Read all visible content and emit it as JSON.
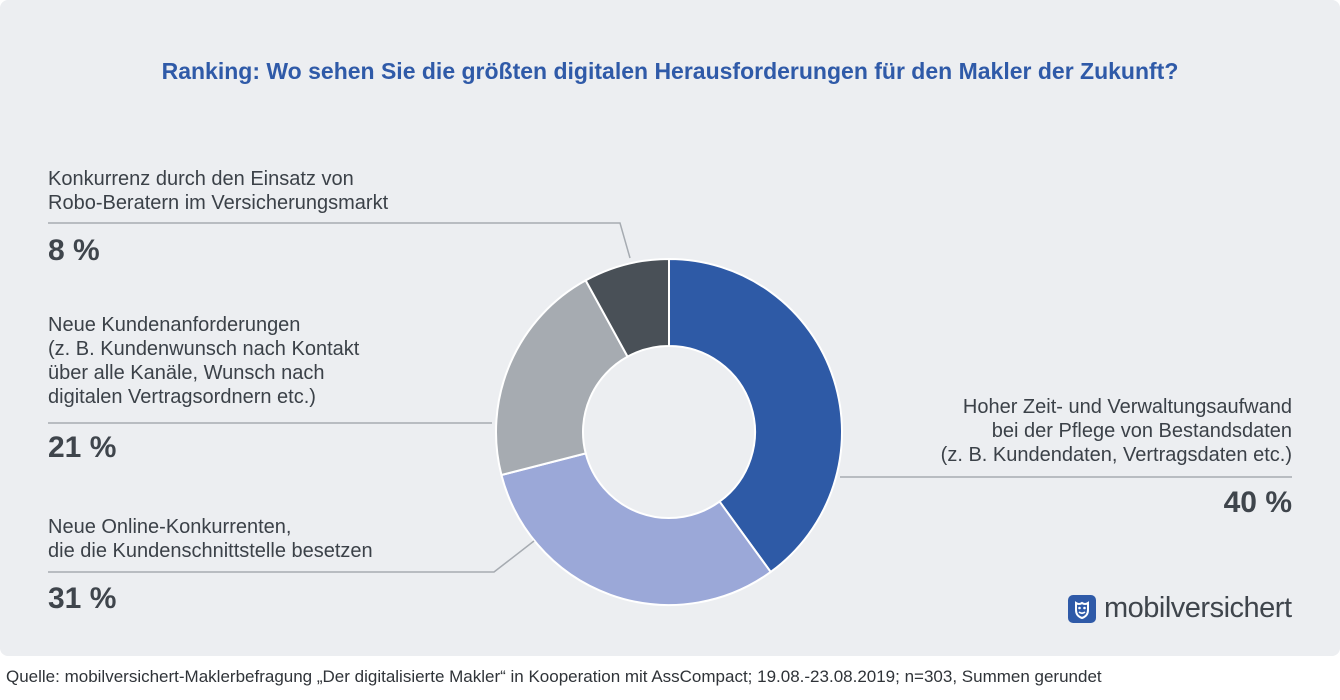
{
  "title": "Ranking: Wo sehen Sie die größten digitalen Herausforderungen für den Makler der Zukunft?",
  "chart_data": {
    "type": "pie",
    "style": "donut",
    "title": "Ranking: Wo sehen Sie die größten digitalen Herausforderungen für den Makler der Zukunft?",
    "slices": [
      {
        "label_lines": [
          "Hoher Zeit- und Verwaltungsaufwand",
          "bei der Pflege von Bestandsdaten",
          "(z. B. Kundendaten, Vertragsdaten etc.)"
        ],
        "value": 40,
        "value_label": "40 %",
        "color": "#2e5aa6"
      },
      {
        "label_lines": [
          "Neue Online-Konkurrenten,",
          "die die Kundenschnittstelle besetzen"
        ],
        "value": 31,
        "value_label": "31 %",
        "color": "#9ba8d8"
      },
      {
        "label_lines": [
          "Neue Kundenanforderungen",
          "(z. B. Kundenwunsch nach Kontakt",
          "über alle Kanäle, Wunsch nach",
          "digitalen Vertragsordnern etc.)"
        ],
        "value": 21,
        "value_label": "21 %",
        "color": "#a6abb1"
      },
      {
        "label_lines": [
          "Konkurrenz durch den Einsatz von",
          "Robo-Beratern im Versicherungsmarkt"
        ],
        "value": 8,
        "value_label": "8 %",
        "color": "#495057"
      }
    ]
  },
  "logo": {
    "text": "mobilversichert",
    "icon": "shield-icon",
    "color": "#2f5aa8"
  },
  "source": "Quelle: mobilversichert-Maklerbefragung „Der digitalisierte Makler“ in Kooperation mit AssCompact; 19.08.-23.08.2019; n=303, Summen gerundet"
}
